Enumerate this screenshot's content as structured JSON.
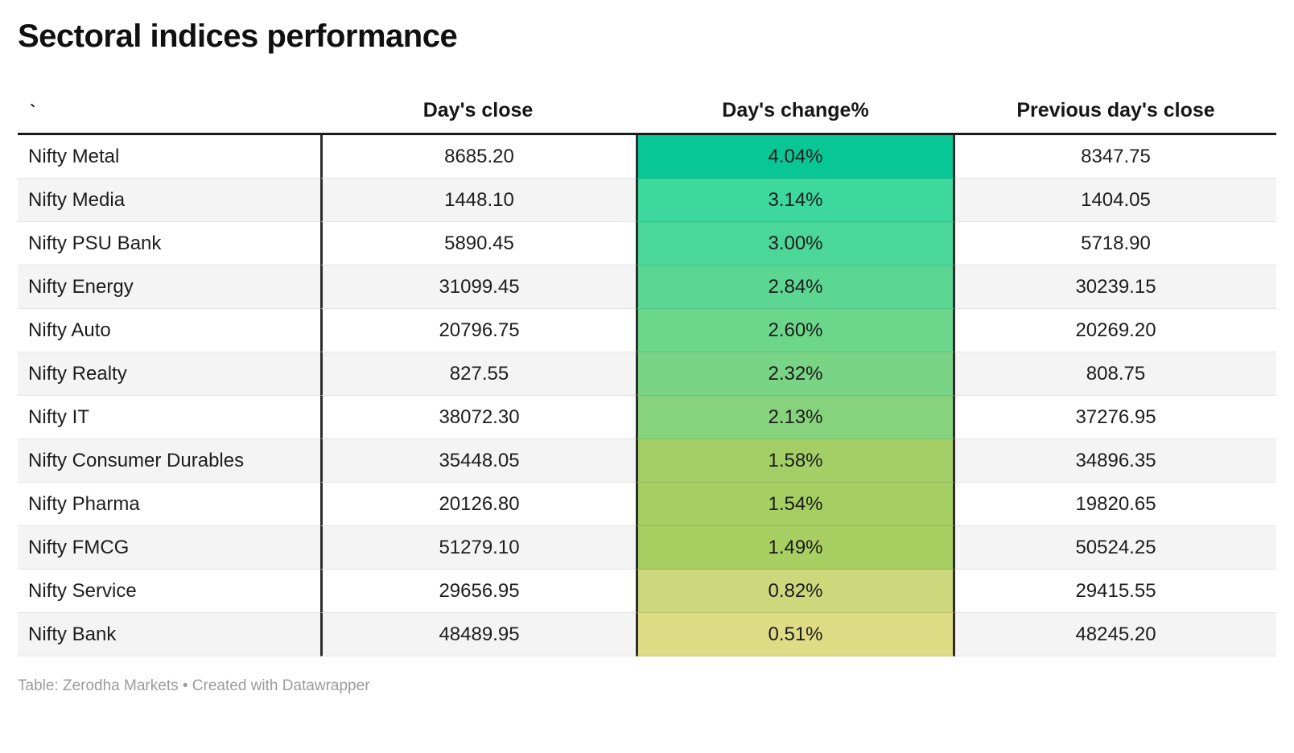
{
  "title": "Sectoral indices performance",
  "table": {
    "columns": [
      {
        "label": "`"
      },
      {
        "label": "Day's close"
      },
      {
        "label": "Day's change%"
      },
      {
        "label": "Previous day's close"
      }
    ],
    "rows": [
      {
        "name": "Nifty Metal",
        "close": "8685.20",
        "change": "4.04%",
        "prev": "8347.75",
        "color": "#09c795"
      },
      {
        "name": "Nifty Media",
        "close": "1448.10",
        "change": "3.14%",
        "prev": "1404.05",
        "color": "#3cd89d"
      },
      {
        "name": "Nifty PSU Bank",
        "close": "5890.45",
        "change": "3.00%",
        "prev": "5718.90",
        "color": "#4ad799"
      },
      {
        "name": "Nifty Energy",
        "close": "31099.45",
        "change": "2.84%",
        "prev": "30239.15",
        "color": "#5bd793"
      },
      {
        "name": "Nifty Auto",
        "close": "20796.75",
        "change": "2.60%",
        "prev": "20269.20",
        "color": "#6cd68b"
      },
      {
        "name": "Nifty Realty",
        "close": "827.55",
        "change": "2.32%",
        "prev": "808.75",
        "color": "#7ad485"
      },
      {
        "name": "Nifty IT",
        "close": "38072.30",
        "change": "2.13%",
        "prev": "37276.95",
        "color": "#87d37d"
      },
      {
        "name": "Nifty Consumer Durables",
        "close": "35448.05",
        "change": "1.58%",
        "prev": "34896.35",
        "color": "#a3cf66"
      },
      {
        "name": "Nifty Pharma",
        "close": "20126.80",
        "change": "1.54%",
        "prev": "19820.65",
        "color": "#a6cf63"
      },
      {
        "name": "Nifty FMCG",
        "close": "51279.10",
        "change": "1.49%",
        "prev": "50524.25",
        "color": "#a8cf61"
      },
      {
        "name": "Nifty Service",
        "close": "29656.95",
        "change": "0.82%",
        "prev": "29415.55",
        "color": "#cdd87c"
      },
      {
        "name": "Nifty Bank",
        "close": "48489.95",
        "change": "0.51%",
        "prev": "48245.20",
        "color": "#dfdc86"
      }
    ]
  },
  "footer": "Table: Zerodha Markets • Created with Datawrapper",
  "colors": {
    "header_rule": "#1a1a1a",
    "column_divider": "#2d2d2d",
    "alt_row_background": "#f4f4f4",
    "row_separator": "#e4e4e4",
    "footer_text": "#9b9b9b",
    "heat_max": "#09c795",
    "heat_min": "#dfdc86"
  },
  "chart_data": {
    "type": "table",
    "title": "Sectoral indices performance",
    "columns": [
      "`",
      "Day's close",
      "Day's change%",
      "Previous day's close"
    ],
    "categories": [
      "Nifty Metal",
      "Nifty Media",
      "Nifty PSU Bank",
      "Nifty Energy",
      "Nifty Auto",
      "Nifty Realty",
      "Nifty IT",
      "Nifty Consumer Durables",
      "Nifty Pharma",
      "Nifty FMCG",
      "Nifty Service",
      "Nifty Bank"
    ],
    "series": [
      {
        "name": "Day's close",
        "values": [
          8685.2,
          1448.1,
          5890.45,
          31099.45,
          20796.75,
          827.55,
          38072.3,
          35448.05,
          20126.8,
          51279.1,
          29656.95,
          48489.95
        ]
      },
      {
        "name": "Day's change%",
        "values": [
          4.04,
          3.14,
          3.0,
          2.84,
          2.6,
          2.32,
          2.13,
          1.58,
          1.54,
          1.49,
          0.82,
          0.51
        ]
      },
      {
        "name": "Previous day's close",
        "values": [
          8347.75,
          1404.05,
          5718.9,
          30239.15,
          20269.2,
          808.75,
          37276.95,
          34896.35,
          19820.65,
          50524.25,
          29415.55,
          48245.2
        ]
      }
    ],
    "layout_hints": {
      "heatmap_column": "Day's change%",
      "heatmap_scale": "green (high) to yellow (low)",
      "source": "Table: Zerodha Markets • Created with Datawrapper"
    }
  }
}
